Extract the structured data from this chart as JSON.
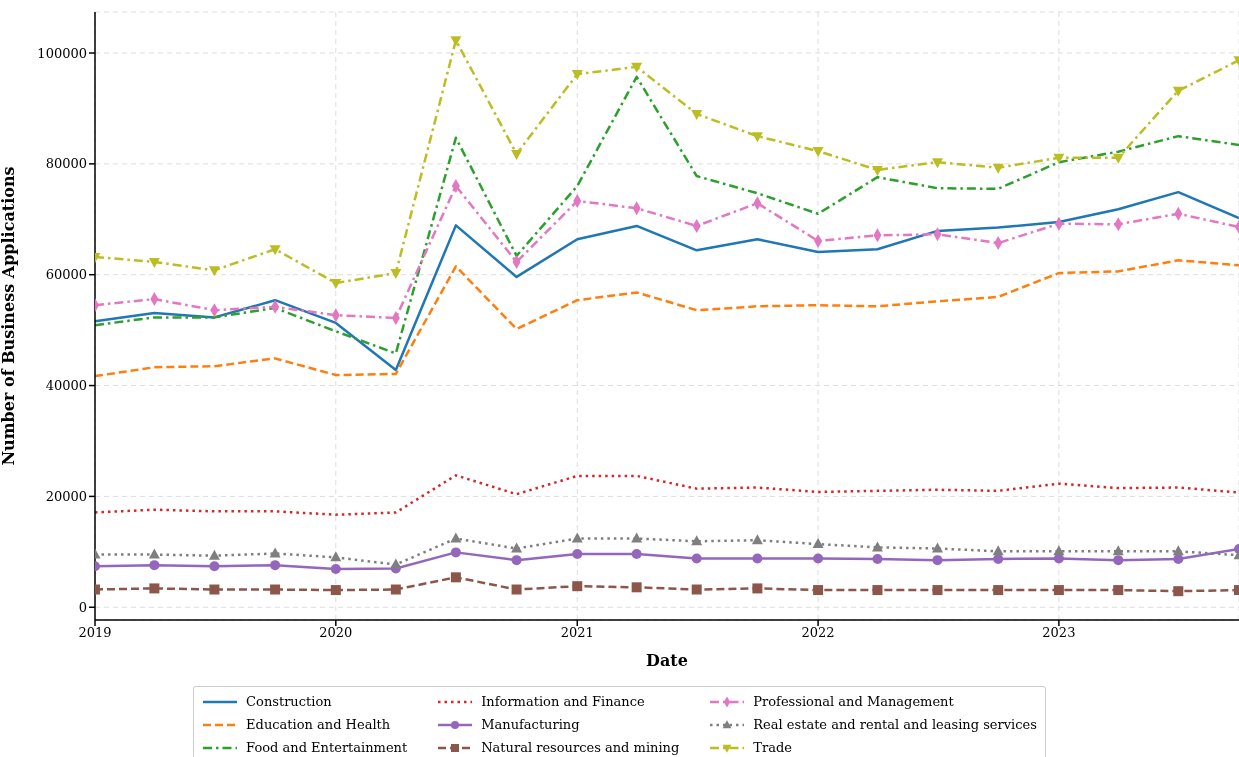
{
  "chart_data": {
    "type": "line",
    "xlabel": "Date",
    "ylabel": "Number of Business Applications",
    "x": [
      "2019-01-01",
      "2019-04-01",
      "2019-07-01",
      "2019-10-01",
      "2020-01-01",
      "2020-04-01",
      "2020-07-01",
      "2020-10-01",
      "2021-01-01",
      "2021-04-01",
      "2021-07-01",
      "2021-10-01",
      "2022-01-01",
      "2022-04-01",
      "2022-07-01",
      "2022-10-01",
      "2023-01-01",
      "2023-04-01",
      "2023-07-01",
      "2023-10-01"
    ],
    "xlim": [
      "2019-01-01",
      "2023-10-01"
    ],
    "xticks": [
      "2019",
      "2020",
      "2021",
      "2022",
      "2023"
    ],
    "ylim": [
      -2300,
      107400
    ],
    "yticks": [
      0,
      20000,
      40000,
      60000,
      80000,
      100000
    ],
    "grid": true,
    "legend": "bottom",
    "series": [
      {
        "name": "Construction",
        "color": "#1f77b4",
        "line_style": "solid",
        "marker": "none",
        "values": [
          51600,
          53100,
          52300,
          55400,
          51300,
          42800,
          68900,
          59600,
          66400,
          68800,
          64400,
          66400,
          64100,
          64600,
          67900,
          68500,
          69500,
          71800,
          74900,
          70200
        ]
      },
      {
        "name": "Education and Health",
        "color": "#ff7f0e",
        "line_style": "dashed",
        "marker": "none",
        "values": [
          41700,
          43300,
          43500,
          44900,
          41900,
          42100,
          61500,
          50200,
          55400,
          56800,
          53600,
          54300,
          54500,
          54300,
          55200,
          56000,
          60300,
          60600,
          62600,
          61700
        ]
      },
      {
        "name": "Food and Entertainment",
        "color": "#2ca02c",
        "line_style": "dashdot",
        "marker": "none",
        "values": [
          50900,
          52300,
          52300,
          54000,
          49800,
          45800,
          84700,
          63400,
          76000,
          95700,
          77800,
          74700,
          71000,
          77600,
          75600,
          75500,
          80300,
          82200,
          85000,
          83400
        ]
      },
      {
        "name": "Information and Finance",
        "color": "#d62728",
        "line_style": "dotted",
        "marker": "none",
        "values": [
          17100,
          17600,
          17300,
          17300,
          16700,
          17100,
          23800,
          20400,
          23700,
          23700,
          21400,
          21600,
          20800,
          21000,
          21200,
          21000,
          22300,
          21500,
          21600,
          20700
        ]
      },
      {
        "name": "Manufacturing",
        "color": "#9467bd",
        "line_style": "solid",
        "marker": "circle",
        "values": [
          7400,
          7600,
          7400,
          7600,
          6900,
          7000,
          9900,
          8500,
          9600,
          9600,
          8800,
          8800,
          8800,
          8700,
          8500,
          8700,
          8800,
          8500,
          8700,
          10500
        ]
      },
      {
        "name": "Natural resources and mining",
        "color": "#8c564b",
        "line_style": "dashed",
        "marker": "square",
        "values": [
          3200,
          3400,
          3200,
          3200,
          3100,
          3200,
          5400,
          3200,
          3800,
          3600,
          3200,
          3400,
          3100,
          3100,
          3100,
          3100,
          3100,
          3100,
          2900,
          3100
        ]
      },
      {
        "name": "Professional and Management",
        "color": "#e377c2",
        "line_style": "dashdot",
        "marker": "diamond",
        "values": [
          54500,
          55600,
          53600,
          54200,
          52700,
          52200,
          76000,
          62300,
          73300,
          72000,
          68800,
          72900,
          66100,
          67100,
          67300,
          65700,
          69200,
          69100,
          71000,
          68600
        ]
      },
      {
        "name": "Real estate and rental and leasing services",
        "color": "#7f7f7f",
        "line_style": "dotted",
        "marker": "triangle",
        "values": [
          9500,
          9500,
          9300,
          9700,
          9000,
          7700,
          12400,
          10600,
          12400,
          12400,
          11900,
          12100,
          11400,
          10800,
          10600,
          10100,
          10100,
          10100,
          10100,
          9400
        ]
      },
      {
        "name": "Trade",
        "color": "#bcbd22",
        "line_style": "dashdot",
        "marker": "triangle-down",
        "values": [
          63200,
          62300,
          60800,
          64600,
          58500,
          60300,
          102300,
          81800,
          96200,
          97500,
          89000,
          85000,
          82300,
          78900,
          80300,
          79300,
          81100,
          81100,
          93200,
          98700
        ]
      }
    ]
  }
}
